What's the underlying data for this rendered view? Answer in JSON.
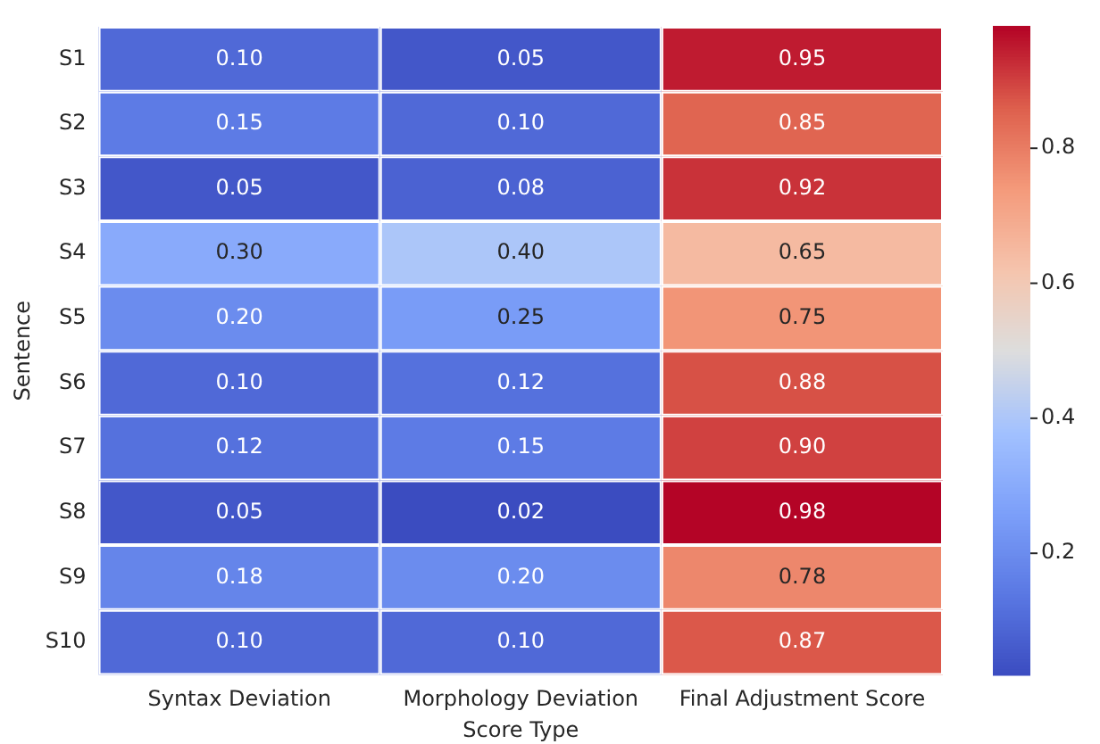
{
  "chart_data": {
    "type": "heatmap",
    "xlabel": "Score Type",
    "ylabel": "Sentence",
    "data_labels": true,
    "categories": [
      "Syntax Deviation",
      "Morphology Deviation",
      "Final Adjustment Score"
    ],
    "y_categories": [
      "S1",
      "S2",
      "S3",
      "S4",
      "S5",
      "S6",
      "S7",
      "S8",
      "S9",
      "S10"
    ],
    "cells": [
      [
        0.1,
        0.05,
        0.95
      ],
      [
        0.15,
        0.1,
        0.85
      ],
      [
        0.05,
        0.08,
        0.92
      ],
      [
        0.3,
        0.4,
        0.65
      ],
      [
        0.2,
        0.25,
        0.75
      ],
      [
        0.1,
        0.12,
        0.88
      ],
      [
        0.12,
        0.15,
        0.9
      ],
      [
        0.05,
        0.02,
        0.98
      ],
      [
        0.18,
        0.2,
        0.78
      ],
      [
        0.1,
        0.1,
        0.87
      ]
    ],
    "cell_labels": [
      [
        "0.10",
        "0.05",
        "0.95"
      ],
      [
        "0.15",
        "0.10",
        "0.85"
      ],
      [
        "0.05",
        "0.08",
        "0.92"
      ],
      [
        "0.30",
        "0.40",
        "0.65"
      ],
      [
        "0.20",
        "0.25",
        "0.75"
      ],
      [
        "0.10",
        "0.12",
        "0.88"
      ],
      [
        "0.12",
        "0.15",
        "0.90"
      ],
      [
        "0.05",
        "0.02",
        "0.98"
      ],
      [
        "0.18",
        "0.20",
        "0.78"
      ],
      [
        "0.10",
        "0.10",
        "0.87"
      ]
    ],
    "clim": [
      0.02,
      0.98
    ],
    "cticks": [
      0.2,
      0.4,
      0.6,
      0.8
    ]
  }
}
